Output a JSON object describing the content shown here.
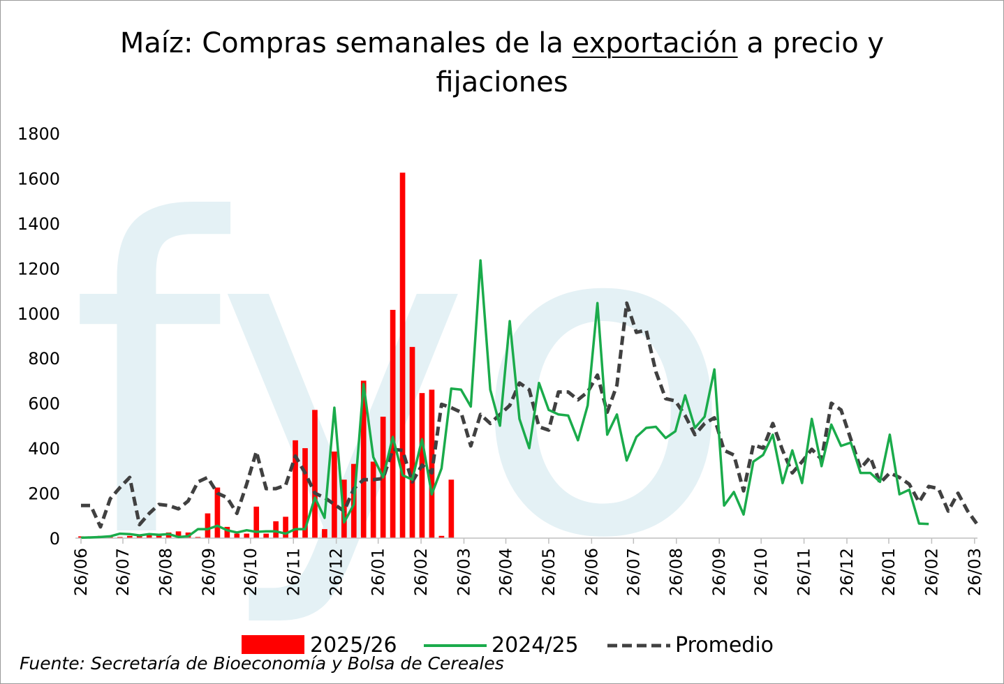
{
  "title": {
    "part1": "Maíz: Compras semanales de la ",
    "part2": "exportación",
    "part3": " a precio y",
    "line2": "fijaciones"
  },
  "watermark": "fyo",
  "source": "Fuente: Secretaría de Bioeconomía y Bolsa de Cereales",
  "colors": {
    "bars": "#ff0000",
    "line_2024": "#1aab4b",
    "line_avg": "#404040",
    "watermark": "#e4f1f5",
    "axis": "#bfbfbf"
  },
  "chart_data": {
    "type": "bar",
    "ylim": [
      0,
      1800
    ],
    "yticks": [
      0,
      200,
      400,
      600,
      800,
      1000,
      1200,
      1400,
      1600,
      1800
    ],
    "xtick_labels": [
      "26/06",
      "26/07",
      "26/08",
      "26/09",
      "26/10",
      "26/11",
      "26/12",
      "26/01",
      "26/02",
      "26/03",
      "26/04",
      "26/05",
      "26/06",
      "26/07",
      "26/08",
      "26/09",
      "26/10",
      "26/11",
      "26/12",
      "26/01",
      "26/02",
      "26/03"
    ],
    "xtick_weeks": [
      0,
      4.3,
      8.7,
      13.1,
      17.4,
      21.8,
      26.2,
      30.5,
      34.9,
      39.3,
      43.6,
      48.0,
      52.4,
      56.7,
      61.1,
      65.5,
      69.8,
      74.2,
      78.6,
      82.9,
      87.3,
      91.7
    ],
    "n_weeks": 93,
    "series": [
      {
        "name": "2025/26",
        "type": "bar",
        "values": [
          8,
          8,
          10,
          5,
          5,
          10,
          12,
          15,
          18,
          25,
          30,
          25,
          5,
          110,
          225,
          50,
          20,
          20,
          140,
          20,
          75,
          95,
          435,
          400,
          570,
          40,
          385,
          260,
          330,
          700,
          340,
          540,
          1015,
          1625,
          850,
          645,
          660,
          10,
          260
        ]
      },
      {
        "name": "2024/25",
        "type": "line",
        "values": [
          2,
          3,
          5,
          8,
          20,
          18,
          12,
          18,
          15,
          18,
          5,
          8,
          40,
          40,
          55,
          35,
          25,
          35,
          28,
          30,
          30,
          20,
          40,
          40,
          180,
          90,
          580,
          70,
          150,
          685,
          360,
          270,
          450,
          280,
          260,
          440,
          195,
          310,
          665,
          660,
          585,
          1235,
          660,
          500,
          965,
          530,
          400,
          690,
          570,
          550,
          545,
          435,
          590,
          1045,
          460,
          550,
          345,
          450,
          490,
          495,
          445,
          475,
          635,
          490,
          540,
          750,
          145,
          205,
          105,
          340,
          370,
          460,
          245,
          390,
          245,
          530,
          320,
          505,
          410,
          425,
          290,
          290,
          250,
          460,
          195,
          215,
          65,
          63
        ]
      },
      {
        "name": "Promedio",
        "type": "line",
        "values": [
          145,
          145,
          50,
          175,
          225,
          270,
          60,
          110,
          150,
          145,
          130,
          165,
          250,
          270,
          200,
          180,
          110,
          240,
          385,
          220,
          220,
          235,
          365,
          290,
          200,
          180,
          150,
          120,
          220,
          260,
          260,
          265,
          395,
          390,
          250,
          325,
          290,
          595,
          580,
          560,
          410,
          550,
          510,
          550,
          590,
          690,
          660,
          495,
          480,
          650,
          650,
          615,
          650,
          725,
          560,
          680,
          1045,
          915,
          925,
          740,
          620,
          610,
          545,
          460,
          510,
          535,
          390,
          370,
          210,
          415,
          400,
          510,
          390,
          290,
          340,
          395,
          350,
          600,
          570,
          440,
          310,
          360,
          245,
          290,
          270,
          240,
          160,
          230,
          220,
          120,
          200,
          120,
          60
        ]
      }
    ]
  }
}
